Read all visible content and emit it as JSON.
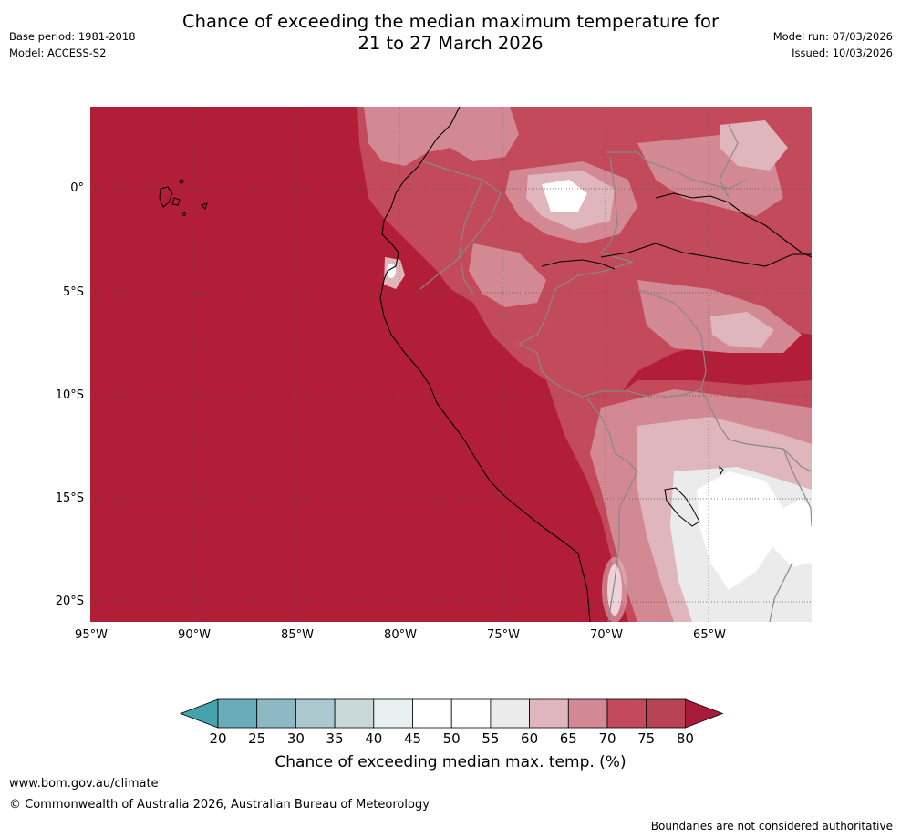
{
  "title": {
    "line1": "Chance of exceeding the median maximum temperature for",
    "line2": "21 to 27 March 2026"
  },
  "meta": {
    "base_period": "Base period: 1981-2018",
    "model": "Model: ACCESS-S2",
    "model_run": "Model run: 07/03/2026",
    "issued": "Issued: 10/03/2026"
  },
  "map": {
    "lat_labels": [
      "0°",
      "5°S",
      "10°S",
      "15°S",
      "20°S"
    ],
    "lon_labels": [
      "95°W",
      "90°W",
      "85°W",
      "80°W",
      "75°W",
      "70°W",
      "65°W"
    ],
    "colors": {
      "c75_80": "#b21d38",
      "c70_75": "#c34a5a",
      "c65_70": "#d28993",
      "c60_65": "#dfb6bc",
      "c55_60": "#ebebeb",
      "c50_55": "#ffffff",
      "coast": "#000000",
      "border": "#888888"
    }
  },
  "legend": {
    "title": "Chance of exceeding median max. temp. (%)",
    "labels": [
      "20",
      "25",
      "30",
      "35",
      "40",
      "45",
      "50",
      "55",
      "60",
      "65",
      "70",
      "75",
      "80"
    ],
    "colors": [
      "#6aacb9",
      "#8db9c4",
      "#aac8cd",
      "#c9d9da",
      "#e8eff1",
      "#ffffff",
      "#ffffff",
      "#ebebeb",
      "#dfb6bc",
      "#d28993",
      "#c34a5a",
      "#b84352"
    ],
    "under_color": "#46a2ad",
    "over_color": "#a71c3a"
  },
  "footer": {
    "website": "www.bom.gov.au/climate",
    "copyright": "© Commonwealth of Australia 2026, Australian Bureau of Meteorology",
    "disclaimer": "Boundaries are not considered authoritative"
  }
}
